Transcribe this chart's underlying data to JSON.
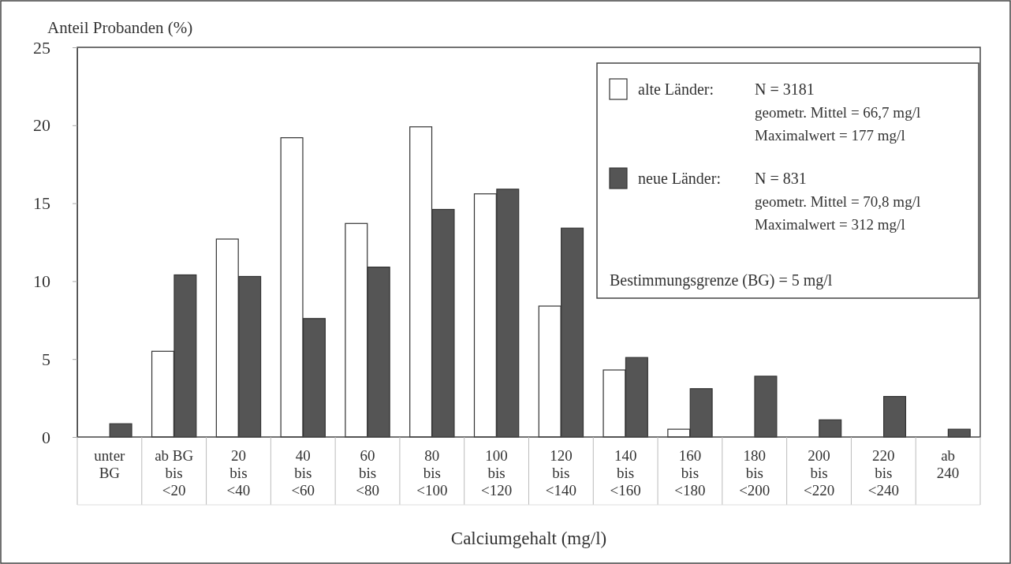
{
  "chart_data": {
    "type": "bar",
    "ylabel": "Anteil Probanden (%)",
    "xlabel": "Calciumgehalt (mg/l)",
    "categories": [
      "unter\nBG",
      "ab BG\nbis\n<20",
      "20\nbis\n<40",
      "40\nbis\n<60",
      "60\nbis\n<80",
      "80\nbis\n<100",
      "100\nbis\n<120",
      "120\nbis\n<140",
      "140\nbis\n<160",
      "160\nbis\n<180",
      "180\nbis\n<200",
      "200\nbis\n<220",
      "220\nbis\n<240",
      "ab\n240"
    ],
    "series": [
      {
        "name": "alte Länder:",
        "color": "#ffffff",
        "values": [
          0,
          5.5,
          12.7,
          19.2,
          13.7,
          19.9,
          15.6,
          8.4,
          4.3,
          0.5,
          0,
          0,
          0,
          0
        ]
      },
      {
        "name": "neue Länder:",
        "color": "#555555",
        "values": [
          0.85,
          10.4,
          10.3,
          7.6,
          10.9,
          14.6,
          15.9,
          13.4,
          5.1,
          3.1,
          3.9,
          1.1,
          2.6,
          0.5
        ]
      }
    ],
    "ylim": [
      0,
      25
    ],
    "yticks": [
      0,
      5,
      10,
      15,
      20,
      25
    ],
    "grid": false,
    "legend": "top right",
    "annotations": [
      "N = 3181",
      "geometr. Mittel = 66,7 mg/l",
      "Maximalwert = 177 mg/l",
      "N = 831",
      "geometr. Mittel = 70,8 mg/l",
      "Maximalwert = 312 mg/l",
      "Bestimmungsgrenze (BG) = 5 mg/l"
    ]
  }
}
